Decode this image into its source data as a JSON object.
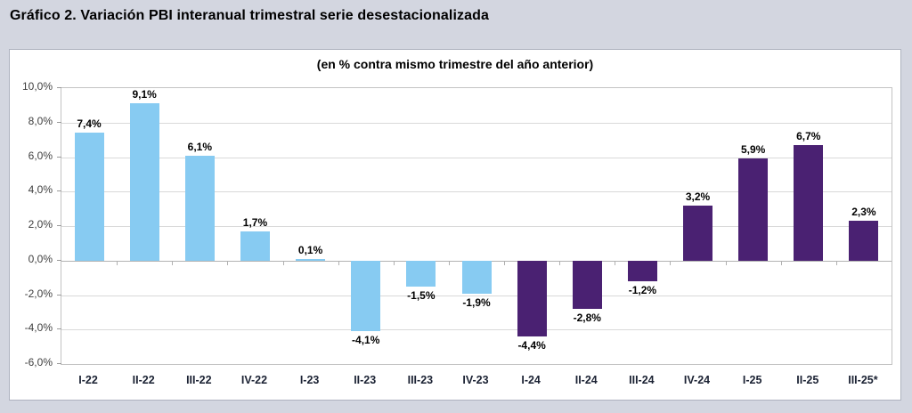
{
  "page": {
    "title": "Gráfico 2. Variación PBI interanual trimestral serie desestacionalizada"
  },
  "chart_data": {
    "type": "bar",
    "title": "(en % contra mismo trimestre del año anterior)",
    "categories": [
      "I-22",
      "II-22",
      "III-22",
      "IV-22",
      "I-23",
      "II-23",
      "III-23",
      "IV-23",
      "I-24",
      "II-24",
      "III-24",
      "IV-24",
      "I-25",
      "II-25",
      "III-25*"
    ],
    "values": [
      7.4,
      9.1,
      6.1,
      1.7,
      0.1,
      -4.1,
      -1.5,
      -1.9,
      -4.4,
      -2.8,
      -1.2,
      3.2,
      5.9,
      6.7,
      2.3
    ],
    "value_labels": [
      "7,4%",
      "9,1%",
      "6,1%",
      "1,7%",
      "0,1%",
      "-4,1%",
      "-1,5%",
      "-1,9%",
      "-4,4%",
      "-2,8%",
      "-1,2%",
      "3,2%",
      "5,9%",
      "6,7%",
      "2,3%"
    ],
    "bar_color_groups": [
      "blue",
      "blue",
      "blue",
      "blue",
      "blue",
      "blue",
      "blue",
      "blue",
      "purple",
      "purple",
      "purple",
      "purple",
      "purple",
      "purple",
      "purple"
    ],
    "palette": {
      "blue": "#87cbf2",
      "purple": "#4a2172"
    },
    "ylim": [
      -6,
      10
    ],
    "y_tick_labels": [
      "10,0%",
      "8,0%",
      "6,0%",
      "4,0%",
      "2,0%",
      "0,0%",
      "-2,0%",
      "-4,0%",
      "-6,0%"
    ],
    "y_tick_values": [
      10,
      8,
      6,
      4,
      2,
      0,
      -2,
      -4,
      -6
    ],
    "grid": true,
    "legend": "none",
    "xlabel": "",
    "ylabel": ""
  }
}
